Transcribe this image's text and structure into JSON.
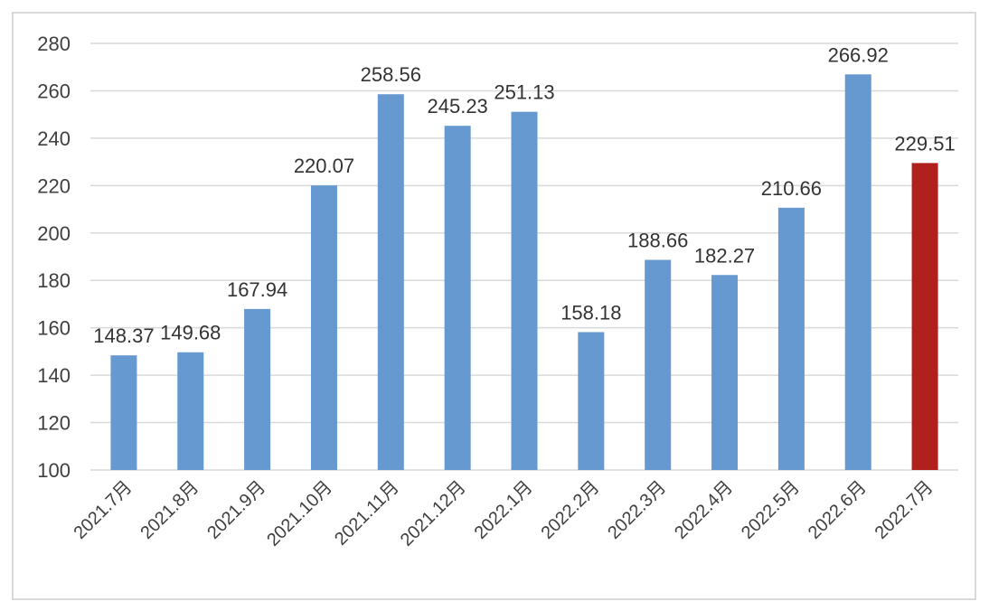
{
  "chart_data": {
    "type": "bar",
    "title": "",
    "xlabel": "",
    "ylabel": "",
    "ylim": [
      100,
      280
    ],
    "yticks": [
      100,
      120,
      140,
      160,
      180,
      200,
      220,
      240,
      260,
      280
    ],
    "grid": true,
    "legend": "none",
    "categories": [
      "2021.7月",
      "2021.8月",
      "2021.9月",
      "2021.10月",
      "2021.11月",
      "2021.12月",
      "2022.1月",
      "2022.2月",
      "2022.3月",
      "2022.4月",
      "2022.5月",
      "2022.6月",
      "2022.7月"
    ],
    "values": [
      148.37,
      149.68,
      167.94,
      220.07,
      258.56,
      245.23,
      251.13,
      158.18,
      188.66,
      182.27,
      210.66,
      266.92,
      229.51
    ],
    "data_labels": [
      "148.37",
      "149.68",
      "167.94",
      "220.07",
      "258.56",
      "245.23",
      "251.13",
      "158.18",
      "188.66",
      "182.27",
      "210.66",
      "266.92",
      "229.51"
    ],
    "colors": {
      "default": "#6699CF",
      "highlight": "#B0201C",
      "grid": "#D9D9D9"
    },
    "highlight_index": 12
  }
}
